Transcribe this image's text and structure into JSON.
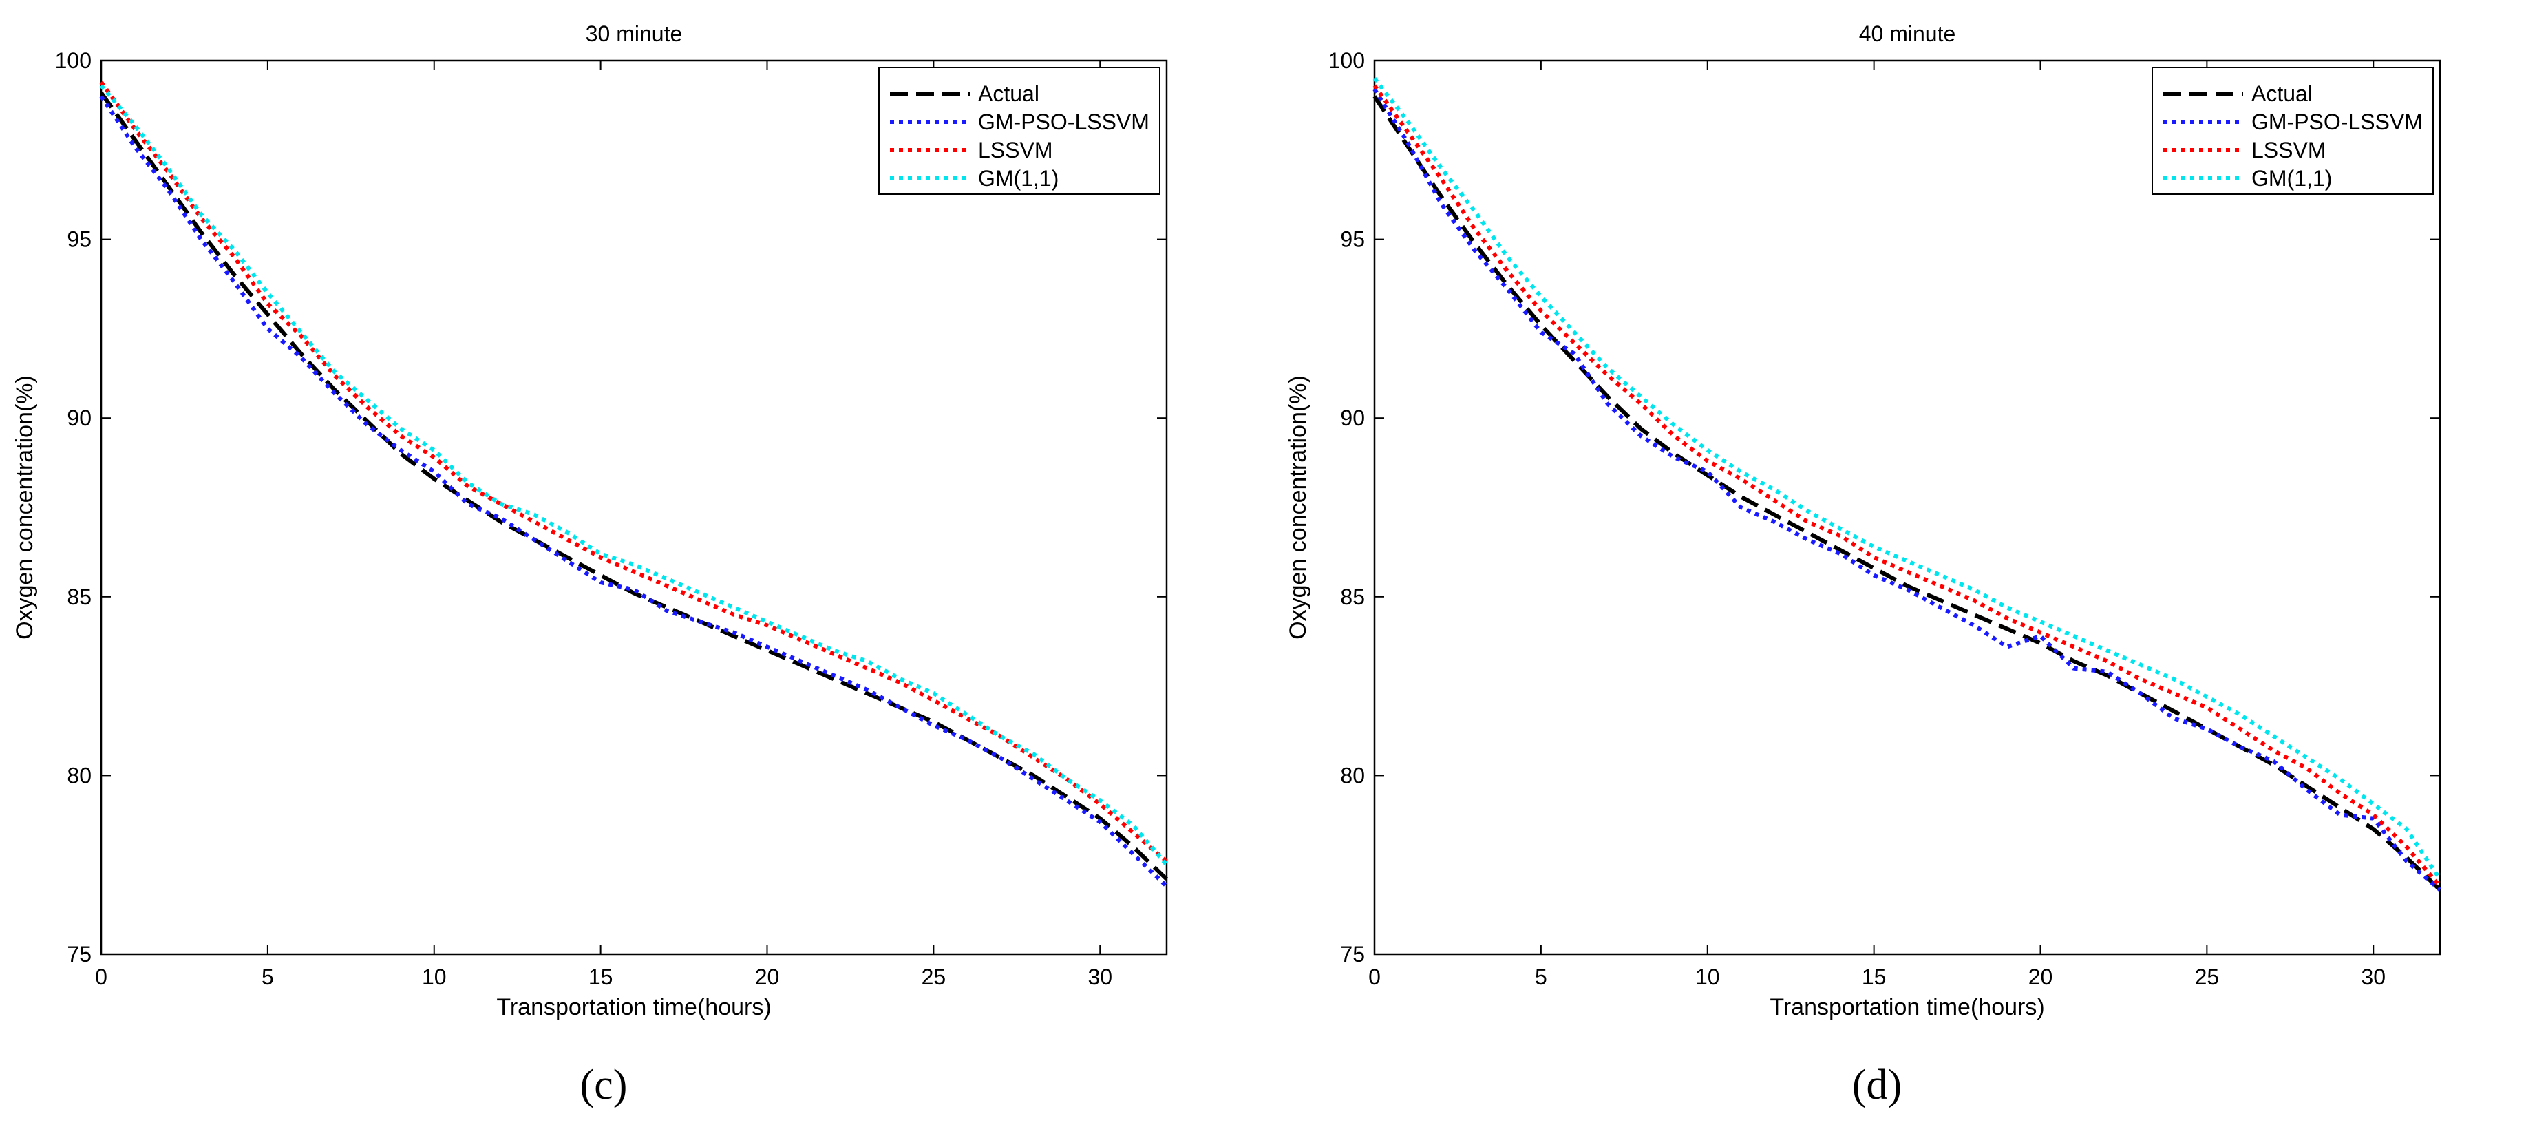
{
  "chart_data": [
    {
      "type": "line",
      "panel_label": "(c)",
      "title": "30 minute",
      "xlabel": "Transportation time(hours)",
      "ylabel": "Oxygen concentration(%)",
      "xlim": [
        0,
        32
      ],
      "ylim": [
        75,
        100
      ],
      "xticks": [
        0,
        5,
        10,
        15,
        20,
        25,
        30
      ],
      "yticks": [
        75,
        80,
        85,
        90,
        95,
        100
      ],
      "grid": false,
      "legend_position": "top-right",
      "x": [
        0,
        1,
        2,
        3,
        4,
        5,
        6,
        7,
        8,
        9,
        10,
        11,
        12,
        13,
        14,
        15,
        16,
        17,
        18,
        19,
        20,
        21,
        22,
        23,
        24,
        25,
        26,
        27,
        28,
        29,
        30,
        31,
        32
      ],
      "series": [
        {
          "name": "Actual",
          "color": "#000000",
          "style": "dashed",
          "values": [
            99.1,
            97.8,
            96.5,
            95.2,
            94.0,
            92.9,
            91.8,
            90.8,
            89.9,
            89.0,
            88.3,
            87.7,
            87.1,
            86.6,
            86.1,
            85.6,
            85.1,
            84.7,
            84.3,
            83.9,
            83.5,
            83.1,
            82.7,
            82.3,
            81.9,
            81.5,
            81.0,
            80.5,
            80.0,
            79.4,
            78.8,
            78.0,
            77.1
          ]
        },
        {
          "name": "GM-PSO-LSSVM",
          "color": "#1a1aff",
          "style": "dotted",
          "values": [
            99.0,
            97.6,
            96.4,
            95.0,
            93.8,
            92.5,
            91.7,
            90.7,
            89.8,
            89.1,
            88.5,
            87.6,
            87.2,
            86.6,
            86.0,
            85.4,
            85.2,
            84.6,
            84.3,
            84.0,
            83.6,
            83.2,
            82.8,
            82.4,
            81.9,
            81.4,
            81.0,
            80.5,
            79.9,
            79.3,
            78.7,
            77.8,
            76.9
          ]
        },
        {
          "name": "LSSVM",
          "color": "#ff0000",
          "style": "dotted",
          "values": [
            99.4,
            98.1,
            96.9,
            95.6,
            94.5,
            93.2,
            92.3,
            91.2,
            90.3,
            89.5,
            88.9,
            88.1,
            87.6,
            87.1,
            86.6,
            86.1,
            85.7,
            85.3,
            84.9,
            84.5,
            84.2,
            83.8,
            83.4,
            83.0,
            82.6,
            82.1,
            81.6,
            81.1,
            80.5,
            79.9,
            79.2,
            78.4,
            77.6
          ]
        },
        {
          "name": "GM(1,1)",
          "color": "#00e5ee",
          "style": "dotted",
          "values": [
            99.3,
            98.2,
            97.0,
            95.7,
            94.7,
            93.5,
            92.4,
            91.3,
            90.5,
            89.7,
            89.1,
            88.2,
            87.6,
            87.3,
            86.8,
            86.2,
            85.9,
            85.5,
            85.1,
            84.7,
            84.3,
            83.9,
            83.5,
            83.2,
            82.7,
            82.3,
            81.7,
            81.1,
            80.6,
            79.9,
            79.3,
            78.6,
            77.5
          ]
        }
      ]
    },
    {
      "type": "line",
      "panel_label": "(d)",
      "title": "40 minute",
      "xlabel": "Transportation time(hours)",
      "ylabel": "Oxygen concentration(%)",
      "xlim": [
        0,
        32
      ],
      "ylim": [
        75,
        100
      ],
      "xticks": [
        0,
        5,
        10,
        15,
        20,
        25,
        30
      ],
      "yticks": [
        75,
        80,
        85,
        90,
        95,
        100
      ],
      "grid": false,
      "legend_position": "top-right",
      "x": [
        0,
        1,
        2,
        3,
        4,
        5,
        6,
        7,
        8,
        9,
        10,
        11,
        12,
        13,
        14,
        15,
        16,
        17,
        18,
        19,
        20,
        21,
        22,
        23,
        24,
        25,
        26,
        27,
        28,
        29,
        30,
        31,
        32
      ],
      "series": [
        {
          "name": "Actual",
          "color": "#000000",
          "style": "dashed",
          "values": [
            99.0,
            97.6,
            96.2,
            94.9,
            93.7,
            92.6,
            91.6,
            90.6,
            89.7,
            89.0,
            88.4,
            87.8,
            87.3,
            86.8,
            86.3,
            85.8,
            85.3,
            84.9,
            84.5,
            84.1,
            83.7,
            83.2,
            82.8,
            82.3,
            81.8,
            81.3,
            80.8,
            80.3,
            79.7,
            79.1,
            78.5,
            77.7,
            76.8
          ]
        },
        {
          "name": "GM-PSO-LSSVM",
          "color": "#1a1aff",
          "style": "dotted",
          "values": [
            99.2,
            97.7,
            96.0,
            94.7,
            93.6,
            92.4,
            91.8,
            90.4,
            89.5,
            88.9,
            88.5,
            87.5,
            87.1,
            86.6,
            86.2,
            85.6,
            85.2,
            84.7,
            84.2,
            83.6,
            83.9,
            83.0,
            82.9,
            82.3,
            81.6,
            81.3,
            80.8,
            80.4,
            79.6,
            78.9,
            78.8,
            77.6,
            76.8
          ]
        },
        {
          "name": "LSSVM",
          "color": "#ff0000",
          "style": "dotted",
          "values": [
            99.3,
            98.0,
            96.7,
            95.3,
            94.1,
            93.0,
            92.1,
            91.2,
            90.4,
            89.5,
            88.8,
            88.3,
            87.7,
            87.1,
            86.7,
            86.1,
            85.7,
            85.3,
            84.9,
            84.4,
            84.0,
            83.6,
            83.2,
            82.7,
            82.3,
            81.9,
            81.3,
            80.7,
            80.2,
            79.5,
            78.9,
            78.0,
            76.9
          ]
        },
        {
          "name": "GM(1,1)",
          "color": "#00e5ee",
          "style": "dotted",
          "values": [
            99.5,
            98.3,
            97.0,
            95.8,
            94.5,
            93.4,
            92.4,
            91.4,
            90.6,
            89.8,
            89.1,
            88.5,
            88.0,
            87.4,
            86.9,
            86.4,
            86.0,
            85.6,
            85.2,
            84.7,
            84.3,
            83.9,
            83.5,
            83.1,
            82.7,
            82.2,
            81.7,
            81.1,
            80.5,
            79.9,
            79.2,
            78.5,
            77.1
          ]
        }
      ]
    }
  ]
}
